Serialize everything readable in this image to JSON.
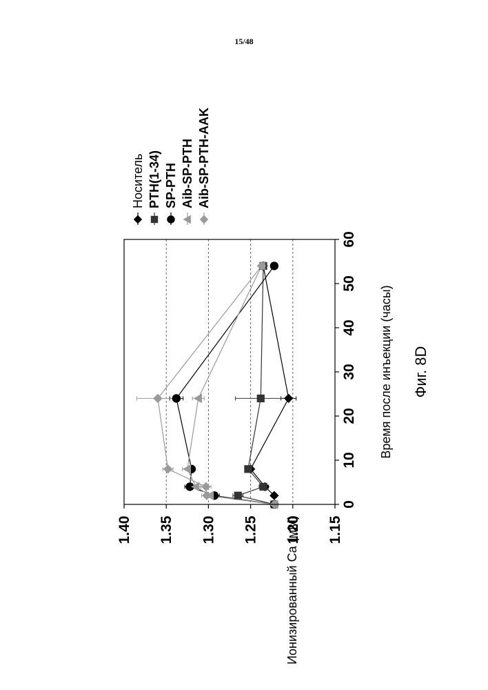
{
  "page": {
    "number": "15/48"
  },
  "figure": {
    "caption": "Фиг. 8D"
  },
  "chart_data": {
    "type": "line",
    "orientation": "rotated-90-ccw",
    "xlabel": "Время после инъекции (часы)",
    "ylabel": "Ионизированный Ca (мМ)",
    "xlim": [
      0,
      60
    ],
    "ylim": [
      1.15,
      1.4
    ],
    "x_ticks": [
      "0",
      "10",
      "20",
      "30",
      "40",
      "50",
      "60"
    ],
    "y_ticks": [
      "1.15",
      "1.20",
      "1.25",
      "1.30",
      "1.35",
      "1.40"
    ],
    "grid": "dashed horizontal",
    "legend_position": "right",
    "series": [
      {
        "name": "Носитель",
        "marker": "diamond",
        "color": "#000000",
        "x": [
          0,
          2,
          4,
          8,
          24,
          54
        ],
        "y": [
          1.222,
          1.222,
          1.233,
          1.25,
          1.205,
          1.235
        ],
        "err": [
          0.002,
          0.003,
          0.004,
          0.003,
          0.009,
          0.003
        ]
      },
      {
        "name": "PTH(1-34)",
        "marker": "square",
        "color": "#333333",
        "x": [
          0,
          2,
          4,
          8,
          24,
          54
        ],
        "y": [
          1.222,
          1.265,
          1.235,
          1.253,
          1.238,
          1.235
        ],
        "err": [
          0.002,
          0.006,
          0.005,
          0.004,
          0.03,
          0.003
        ]
      },
      {
        "name": "SP-PTH",
        "marker": "circle",
        "color": "#000000",
        "x": [
          0,
          2,
          4,
          8,
          24,
          54
        ],
        "y": [
          1.222,
          1.293,
          1.322,
          1.32,
          1.338,
          1.222
        ],
        "err": [
          0.002,
          0.006,
          0.006,
          0.004,
          0.008,
          0.003
        ]
      },
      {
        "name": "Aib-SP-PTH",
        "marker": "triangle",
        "color": "#999999",
        "x": [
          0,
          2,
          4,
          8,
          24,
          54
        ],
        "y": [
          1.222,
          1.298,
          1.315,
          1.325,
          1.312,
          1.237
        ],
        "err": [
          0.002,
          0.006,
          0.006,
          0.006,
          0.007,
          0.003
        ]
      },
      {
        "name": "Aib-SP-PTH-AAK",
        "marker": "diamond",
        "color": "#9a9a9a",
        "x": [
          0,
          2,
          4,
          8,
          24,
          54
        ],
        "y": [
          1.222,
          1.302,
          1.303,
          1.348,
          1.36,
          1.237
        ],
        "err": [
          0.002,
          0.006,
          0.006,
          0.006,
          0.025,
          0.003
        ]
      }
    ]
  }
}
